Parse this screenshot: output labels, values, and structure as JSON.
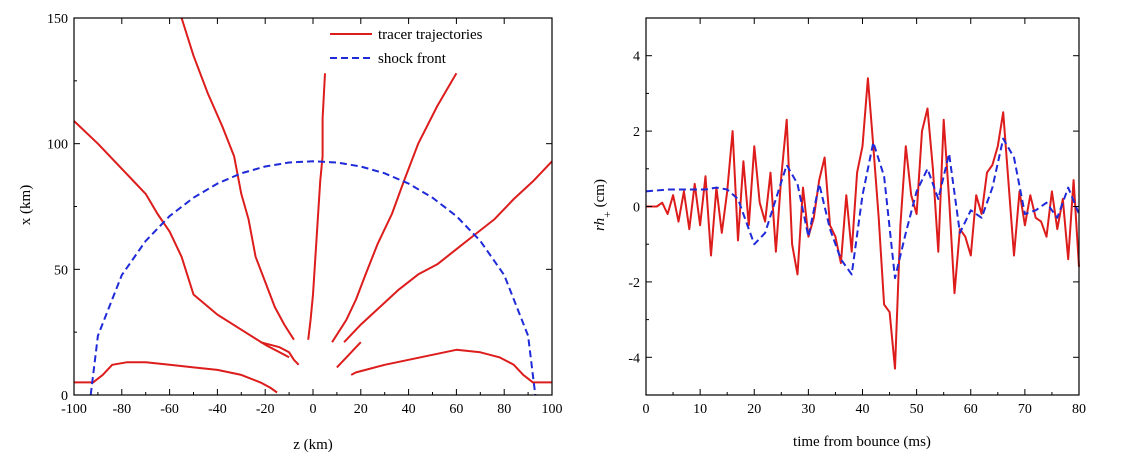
{
  "colors": {
    "tracer": "#dd1c1c",
    "shock": "#1f2ad8",
    "axis": "#000000"
  },
  "chart_data": [
    {
      "type": "line",
      "xlabel": "z (km)",
      "ylabel": "x (km)",
      "xlim": [
        -100,
        100
      ],
      "ylim": [
        0,
        150
      ],
      "xticks": [
        -100,
        -80,
        -60,
        -40,
        -20,
        0,
        20,
        40,
        60,
        80,
        100
      ],
      "yticks": [
        0,
        50,
        100,
        150
      ],
      "legend": {
        "position": "top-right",
        "entries": [
          "tracer trajectories",
          "shock front"
        ]
      },
      "series": [
        {
          "name": "tracer trajectories",
          "style": "solid",
          "x": [
            -100,
            -92,
            -88,
            -84,
            -78,
            -70,
            -60,
            -50,
            -40,
            -30,
            -22,
            -18,
            -15
          ],
          "y": [
            5,
            5,
            8,
            12,
            13,
            13,
            12,
            11,
            10,
            8,
            5,
            3,
            1
          ]
        },
        {
          "name": "tracer trajectories",
          "style": "solid",
          "x": [
            -100,
            -90,
            -80,
            -70,
            -65,
            -60,
            -55,
            -50,
            -40,
            -30,
            -20,
            -10
          ],
          "y": [
            109,
            100,
            90,
            80,
            72,
            65,
            55,
            40,
            32,
            26,
            20,
            15
          ]
        },
        {
          "name": "tracer trajectories",
          "style": "solid",
          "x": [
            -55,
            -50,
            -44,
            -38,
            -33,
            -30,
            -27,
            -24,
            -20,
            -16,
            -12,
            -8
          ],
          "y": [
            150,
            135,
            120,
            107,
            95,
            80,
            70,
            55,
            45,
            35,
            28,
            22
          ]
        },
        {
          "name": "tracer trajectories",
          "style": "solid",
          "x": [
            5,
            4,
            4,
            3,
            2,
            1,
            0,
            -1,
            -2
          ],
          "y": [
            128,
            110,
            95,
            85,
            70,
            55,
            40,
            30,
            22
          ]
        },
        {
          "name": "tracer trajectories",
          "style": "solid",
          "x": [
            60,
            52,
            44,
            38,
            33,
            27,
            22,
            18,
            14,
            10,
            8
          ],
          "y": [
            128,
            115,
            100,
            85,
            72,
            60,
            48,
            38,
            30,
            24,
            21
          ]
        },
        {
          "name": "tracer trajectories",
          "style": "solid",
          "x": [
            100,
            92,
            84,
            76,
            68,
            60,
            52,
            44,
            36,
            28,
            20,
            16,
            13
          ],
          "y": [
            93,
            85,
            78,
            70,
            64,
            58,
            52,
            48,
            42,
            35,
            28,
            24,
            21
          ]
        },
        {
          "name": "tracer trajectories",
          "style": "solid",
          "x": [
            100,
            92,
            88,
            84,
            78,
            70,
            60,
            50,
            40,
            30,
            22,
            18,
            16
          ],
          "y": [
            5,
            5,
            8,
            12,
            15,
            17,
            18,
            16,
            14,
            12,
            10,
            9,
            8
          ]
        },
        {
          "name": "tracer trajectories",
          "style": "solid",
          "x": [
            -22,
            -18,
            -14,
            -10,
            -8,
            -6
          ],
          "y": [
            21,
            20,
            19,
            17,
            14,
            12
          ]
        },
        {
          "name": "tracer trajectories",
          "style": "solid",
          "x": [
            20,
            18,
            16,
            14,
            12,
            10
          ],
          "y": [
            21,
            19,
            17,
            15,
            13,
            11
          ]
        },
        {
          "name": "shock front",
          "style": "dashed",
          "x": [
            -93,
            -90,
            -80,
            -70,
            -60,
            -50,
            -40,
            -30,
            -20,
            -10,
            0,
            10,
            20,
            30,
            40,
            50,
            60,
            70,
            80,
            90,
            93
          ],
          "y": [
            0,
            23.6,
            47.7,
            61.3,
            71.2,
            78.5,
            84.1,
            88.2,
            90.9,
            92.5,
            93,
            92.5,
            90.9,
            88.2,
            84.1,
            78.5,
            71.2,
            61.3,
            47.7,
            23.6,
            0
          ]
        }
      ]
    },
    {
      "type": "line",
      "xlabel": "time from bounce (ms)",
      "ylabel_main": "rh",
      "ylabel_sub": "+",
      "ylabel_unit": " (cm)",
      "xlim": [
        0,
        80
      ],
      "ylim": [
        -5,
        5
      ],
      "xticks": [
        0,
        10,
        20,
        30,
        40,
        50,
        60,
        70,
        80
      ],
      "yticks": [
        -4,
        -2,
        0,
        2,
        4
      ],
      "series": [
        {
          "style": "solid",
          "color": "tracer",
          "x": [
            0,
            1,
            2,
            3,
            4,
            5,
            6,
            7,
            8,
            9,
            10,
            11,
            12,
            13,
            14,
            15,
            16,
            17,
            18,
            19,
            20,
            21,
            22,
            23,
            24,
            25,
            26,
            27,
            28,
            29,
            30,
            31,
            32,
            33,
            34,
            35,
            36,
            37,
            38,
            39,
            40,
            41,
            42,
            43,
            44,
            45,
            46,
            47,
            48,
            49,
            50,
            51,
            52,
            53,
            54,
            55,
            56,
            57,
            58,
            59,
            60,
            61,
            62,
            63,
            64,
            65,
            66,
            67,
            68,
            69,
            70,
            71,
            72,
            73,
            74,
            75,
            76,
            77,
            78,
            79,
            80
          ],
          "y": [
            0,
            0,
            0,
            0.1,
            -0.2,
            0.3,
            -0.4,
            0.4,
            -0.6,
            0.6,
            -0.5,
            0.8,
            -1.3,
            0.5,
            -0.7,
            0.4,
            2.0,
            -0.9,
            1.2,
            -0.5,
            1.6,
            0.1,
            -0.4,
            0.9,
            -1.2,
            0.8,
            2.3,
            -1.0,
            -1.8,
            0.5,
            -0.8,
            -0.3,
            0.7,
            1.3,
            -0.5,
            -0.8,
            -1.5,
            0.3,
            -1.2,
            0.9,
            1.6,
            3.4,
            1.6,
            -0.3,
            -2.6,
            -2.8,
            -4.3,
            -0.5,
            1.6,
            0.3,
            -0.2,
            2.0,
            2.6,
            1.0,
            -1.2,
            2.3,
            0.2,
            -2.3,
            -0.6,
            -0.8,
            -1.3,
            0.3,
            -0.2,
            0.9,
            1.1,
            1.6,
            2.5,
            0.6,
            -1.3,
            0.4,
            -0.5,
            0.3,
            -0.3,
            -0.4,
            -0.8,
            0.4,
            -0.6,
            0.2,
            -1.4,
            0.7,
            -1.6
          ]
        },
        {
          "style": "dashed",
          "color": "shock",
          "x": [
            0,
            4,
            8,
            11,
            13,
            15,
            17,
            19,
            20,
            22,
            24,
            26,
            28,
            30,
            32,
            34,
            36,
            38,
            40,
            42,
            44,
            46,
            48,
            50,
            52,
            54,
            56,
            58,
            60,
            62,
            64,
            66,
            68,
            70,
            72,
            74,
            76,
            78,
            80
          ],
          "y": [
            0.4,
            0.45,
            0.45,
            0.45,
            0.5,
            0.45,
            0.2,
            -0.6,
            -1.0,
            -0.7,
            0.2,
            1.1,
            0.6,
            -0.8,
            0.6,
            -0.6,
            -1.4,
            -1.8,
            0.3,
            1.7,
            0.8,
            -1.9,
            -0.7,
            0.4,
            1.0,
            0.2,
            1.4,
            -0.7,
            -0.1,
            -0.3,
            0.5,
            1.8,
            1.3,
            -0.2,
            -0.1,
            0.1,
            -0.3,
            0.5,
            -0.2
          ]
        }
      ]
    }
  ]
}
